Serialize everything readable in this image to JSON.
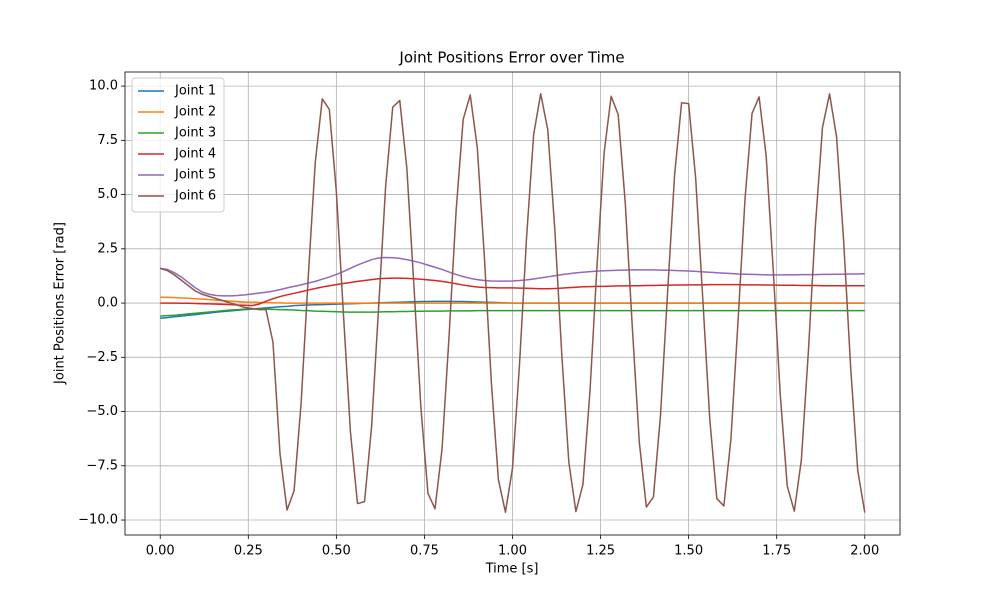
{
  "chart_data": {
    "type": "line",
    "title": "Joint Positions Error over Time",
    "xlabel": "Time [s]",
    "ylabel": "Joint Positions Error [rad]",
    "xlim": [
      -0.1,
      2.1
    ],
    "ylim": [
      -10.69,
      10.65
    ],
    "xticks": [
      {
        "value": 0,
        "label": "0.00"
      },
      {
        "value": 0.25,
        "label": "0.25"
      },
      {
        "value": 0.5,
        "label": "0.50"
      },
      {
        "value": 0.75,
        "label": "0.75"
      },
      {
        "value": 1,
        "label": "1.00"
      },
      {
        "value": 1.25,
        "label": "1.25"
      },
      {
        "value": 1.5,
        "label": "1.50"
      },
      {
        "value": 1.75,
        "label": "1.75"
      },
      {
        "value": 2,
        "label": "2.00"
      }
    ],
    "yticks": [
      {
        "value": -10,
        "label": "−10.0"
      },
      {
        "value": -7.5,
        "label": "−7.5"
      },
      {
        "value": -5,
        "label": "−5.0"
      },
      {
        "value": -2.5,
        "label": "−2.5"
      },
      {
        "value": 0,
        "label": "0.0"
      },
      {
        "value": 2.5,
        "label": "2.5"
      },
      {
        "value": 5,
        "label": "5.0"
      },
      {
        "value": 7.5,
        "label": "7.5"
      },
      {
        "value": 10,
        "label": "10.0"
      }
    ],
    "grid": true,
    "legend": "upper left",
    "x": [
      0,
      0.02,
      0.04,
      0.06,
      0.08,
      0.1,
      0.12,
      0.14,
      0.16,
      0.18,
      0.2,
      0.22,
      0.24,
      0.26,
      0.28,
      0.3,
      0.32,
      0.34,
      0.36,
      0.38,
      0.4,
      0.42,
      0.44,
      0.46,
      0.48,
      0.5,
      0.52,
      0.54,
      0.56,
      0.58,
      0.6,
      0.62,
      0.64,
      0.66,
      0.68,
      0.7,
      0.72,
      0.74,
      0.76,
      0.78,
      0.8,
      0.82,
      0.84,
      0.86,
      0.88,
      0.9,
      0.92,
      0.94,
      0.96,
      0.98,
      1,
      1.02,
      1.04,
      1.06,
      1.08,
      1.1,
      1.12,
      1.14,
      1.16,
      1.18,
      1.2,
      1.22,
      1.24,
      1.26,
      1.28,
      1.3,
      1.32,
      1.34,
      1.36,
      1.38,
      1.4,
      1.42,
      1.44,
      1.46,
      1.48,
      1.5,
      1.52,
      1.54,
      1.56,
      1.58,
      1.6,
      1.62,
      1.64,
      1.66,
      1.68,
      1.7,
      1.72,
      1.74,
      1.76,
      1.78,
      1.8,
      1.82,
      1.84,
      1.86,
      1.88,
      1.9,
      1.92,
      1.94,
      1.96,
      1.98,
      2
    ],
    "series": [
      {
        "name": "Joint 1",
        "color": "#1f77b4",
        "values": [
          -0.7,
          -0.67,
          -0.63,
          -0.6,
          -0.56,
          -0.53,
          -0.49,
          -0.46,
          -0.42,
          -0.39,
          -0.36,
          -0.33,
          -0.3,
          -0.28,
          -0.25,
          -0.22,
          -0.2,
          -0.17,
          -0.15,
          -0.12,
          -0.1,
          -0.09,
          -0.08,
          -0.07,
          -0.06,
          -0.05,
          -0.04,
          -0.03,
          -0.02,
          -0.01,
          0,
          0.01,
          0.02,
          0.03,
          0.04,
          0.05,
          0.06,
          0.07,
          0.07,
          0.08,
          0.08,
          0.08,
          0.07,
          0.07,
          0.06,
          0.05,
          0.04,
          0.03,
          0.02,
          0.01,
          0,
          0,
          0,
          0,
          0,
          0,
          0,
          0,
          0,
          0,
          0,
          0,
          0,
          0,
          0,
          0,
          0,
          0,
          0,
          0,
          0,
          0,
          0,
          0,
          0,
          0,
          0,
          0,
          0,
          0,
          0,
          0,
          0,
          0,
          0,
          0,
          0,
          0,
          0,
          0,
          0,
          0,
          0,
          0,
          0,
          0,
          0,
          0,
          0,
          0,
          0
        ]
      },
      {
        "name": "Joint 2",
        "color": "#ff7f0e",
        "values": [
          0.27,
          0.26,
          0.25,
          0.24,
          0.22,
          0.2,
          0.18,
          0.16,
          0.13,
          0.11,
          0.09,
          0.07,
          0.05,
          0.04,
          0.03,
          0.02,
          0.01,
          0.01,
          0,
          0,
          0,
          0,
          0,
          0,
          0,
          0,
          0,
          0,
          0,
          0,
          0,
          0,
          0,
          0,
          0,
          0,
          0,
          0,
          0,
          0,
          0,
          0,
          0,
          0,
          0,
          0,
          0,
          0,
          0,
          0,
          0,
          0,
          0,
          0,
          0,
          0,
          0,
          0,
          0,
          0,
          0,
          0,
          0,
          0,
          0,
          0,
          0,
          0,
          0,
          0,
          0,
          0,
          0,
          0,
          0,
          0,
          0,
          0,
          0,
          0,
          0,
          0,
          0,
          0,
          0,
          0,
          0,
          0,
          0,
          0,
          0,
          0,
          0,
          0,
          0,
          0,
          0,
          0,
          0,
          0,
          0
        ]
      },
      {
        "name": "Joint 3",
        "color": "#2ca02c",
        "values": [
          -0.6,
          -0.58,
          -0.56,
          -0.53,
          -0.5,
          -0.47,
          -0.44,
          -0.41,
          -0.38,
          -0.35,
          -0.32,
          -0.3,
          -0.28,
          -0.27,
          -0.27,
          -0.28,
          -0.29,
          -0.3,
          -0.31,
          -0.32,
          -0.34,
          -0.35,
          -0.37,
          -0.38,
          -0.39,
          -0.4,
          -0.41,
          -0.42,
          -0.42,
          -0.42,
          -0.42,
          -0.41,
          -0.4,
          -0.4,
          -0.39,
          -0.39,
          -0.38,
          -0.38,
          -0.37,
          -0.37,
          -0.37,
          -0.36,
          -0.36,
          -0.36,
          -0.36,
          -0.35,
          -0.35,
          -0.35,
          -0.35,
          -0.35,
          -0.35,
          -0.35,
          -0.35,
          -0.35,
          -0.35,
          -0.35,
          -0.35,
          -0.35,
          -0.35,
          -0.35,
          -0.35,
          -0.35,
          -0.35,
          -0.35,
          -0.35,
          -0.35,
          -0.35,
          -0.35,
          -0.35,
          -0.35,
          -0.35,
          -0.35,
          -0.35,
          -0.35,
          -0.35,
          -0.35,
          -0.35,
          -0.35,
          -0.35,
          -0.35,
          -0.35,
          -0.35,
          -0.35,
          -0.35,
          -0.35,
          -0.35,
          -0.35,
          -0.35,
          -0.35,
          -0.35,
          -0.35,
          -0.35,
          -0.35,
          -0.35,
          -0.35,
          -0.35,
          -0.35,
          -0.35,
          -0.35,
          -0.35,
          -0.35
        ]
      },
      {
        "name": "Joint 4",
        "color": "#d62728",
        "values": [
          0,
          0,
          0,
          -0.01,
          -0.01,
          -0.02,
          -0.03,
          -0.04,
          -0.05,
          -0.06,
          -0.07,
          -0.09,
          -0.1,
          -0.12,
          -0.05,
          0.08,
          0.2,
          0.3,
          0.38,
          0.45,
          0.52,
          0.6,
          0.67,
          0.74,
          0.8,
          0.85,
          0.9,
          0.95,
          1,
          1.04,
          1.08,
          1.12,
          1.14,
          1.15,
          1.15,
          1.14,
          1.12,
          1.1,
          1.07,
          1.04,
          1,
          0.95,
          0.89,
          0.83,
          0.78,
          0.74,
          0.72,
          0.71,
          0.7,
          0.7,
          0.7,
          0.69,
          0.68,
          0.67,
          0.66,
          0.66,
          0.67,
          0.69,
          0.71,
          0.73,
          0.75,
          0.76,
          0.77,
          0.77,
          0.78,
          0.79,
          0.79,
          0.8,
          0.8,
          0.81,
          0.81,
          0.82,
          0.82,
          0.83,
          0.83,
          0.84,
          0.84,
          0.84,
          0.85,
          0.85,
          0.85,
          0.85,
          0.85,
          0.84,
          0.84,
          0.84,
          0.83,
          0.83,
          0.82,
          0.82,
          0.82,
          0.81,
          0.81,
          0.81,
          0.8,
          0.8,
          0.8,
          0.8,
          0.8,
          0.8,
          0.8
        ]
      },
      {
        "name": "Joint 5",
        "color": "#9467bd",
        "values": [
          1.6,
          1.55,
          1.4,
          1.2,
          0.95,
          0.7,
          0.5,
          0.4,
          0.35,
          0.33,
          0.33,
          0.35,
          0.38,
          0.42,
          0.46,
          0.5,
          0.55,
          0.62,
          0.7,
          0.77,
          0.84,
          0.92,
          1,
          1.1,
          1.2,
          1.32,
          1.45,
          1.6,
          1.75,
          1.88,
          2,
          2.08,
          2.1,
          2.09,
          2.06,
          2,
          1.93,
          1.85,
          1.75,
          1.65,
          1.55,
          1.43,
          1.32,
          1.22,
          1.14,
          1.08,
          1.04,
          1.02,
          1.01,
          1.01,
          1.02,
          1.04,
          1.07,
          1.11,
          1.16,
          1.21,
          1.26,
          1.31,
          1.35,
          1.39,
          1.42,
          1.45,
          1.47,
          1.49,
          1.5,
          1.51,
          1.52,
          1.53,
          1.53,
          1.53,
          1.53,
          1.52,
          1.51,
          1.5,
          1.49,
          1.48,
          1.46,
          1.44,
          1.42,
          1.4,
          1.38,
          1.36,
          1.34,
          1.33,
          1.32,
          1.31,
          1.3,
          1.3,
          1.3,
          1.3,
          1.3,
          1.31,
          1.31,
          1.31,
          1.32,
          1.32,
          1.33,
          1.33,
          1.34,
          1.34,
          1.35
        ]
      },
      {
        "name": "Joint 6",
        "color": "#8c564b",
        "values": [
          1.6,
          1.5,
          1.3,
          1.05,
          0.8,
          0.55,
          0.4,
          0.3,
          0.2,
          0.1,
          0,
          -0.1,
          -0.2,
          -0.25,
          -0.3,
          -0.3,
          -1.8,
          -6.94,
          -9.54,
          -8.65,
          -4.59,
          1.15,
          6.47,
          9.41,
          8.93,
          5.13,
          -0.49,
          -5.94,
          -9.24,
          -9.15,
          -5.7,
          -0.18,
          5.41,
          9.03,
          9.34,
          6.23,
          0.84,
          -4.83,
          -8.77,
          -9.48,
          -6.72,
          -1.51,
          4.27,
          8.47,
          9.59,
          7.18,
          2.16,
          -3.66,
          -8.14,
          -9.64,
          -7.61,
          -2.8,
          3.04,
          7.76,
          9.65,
          8,
          3.43,
          -2.4,
          -7.35,
          -9.61,
          -8.36,
          -4.05,
          1.75,
          6.91,
          9.53,
          8.69,
          4.64,
          -1.08,
          -6.42,
          -9.4,
          -8.94,
          -5.21,
          0.43,
          5.89,
          9.23,
          9.19,
          5.75,
          0.24,
          -5.36,
          -9.01,
          -9.35,
          -6.28,
          -0.9,
          4.79,
          8.74,
          9.5,
          6.8,
          1.57,
          -4.21,
          -8.44,
          -9.59,
          -7.23,
          -2.21,
          3.6,
          8.1,
          9.64,
          7.65,
          2.87,
          -2.98,
          -7.72,
          -9.65
        ]
      }
    ]
  }
}
